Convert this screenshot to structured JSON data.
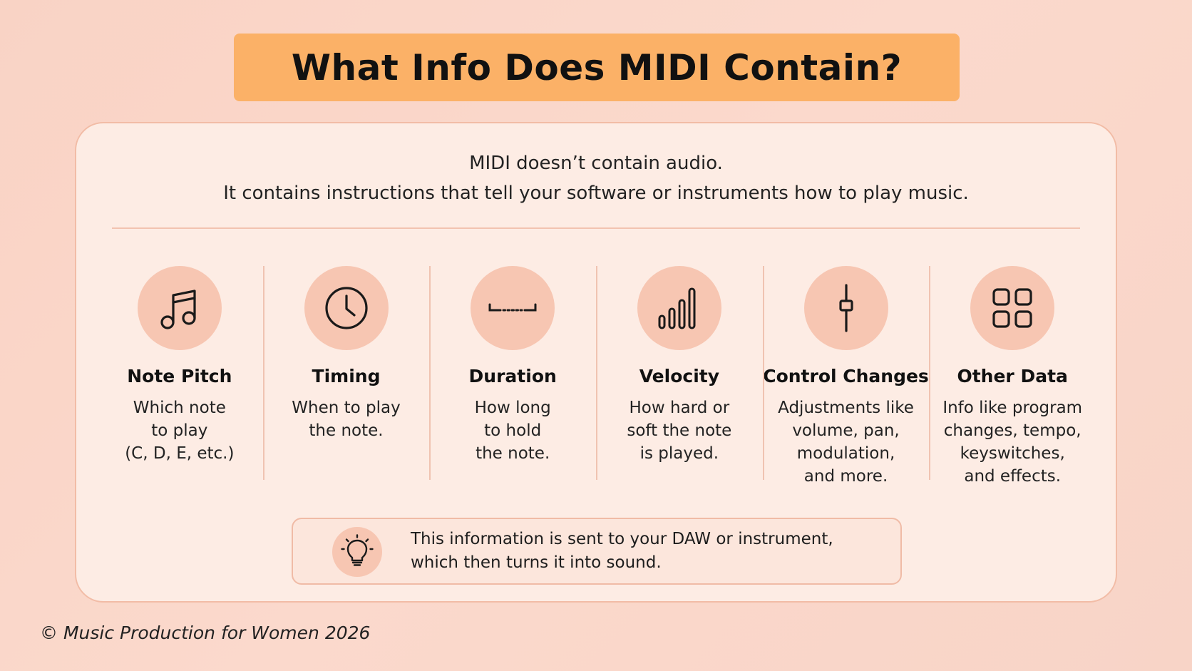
{
  "title": "What Info Does MIDI Contain?",
  "intro": {
    "line1": "MIDI doesn’t contain audio.",
    "line2": "It contains instructions that tell your software or instruments how to play music."
  },
  "items": [
    {
      "icon": "music-note-icon",
      "title": "Note Pitch",
      "description": "Which note\nto play\n(C, D, E, etc.)"
    },
    {
      "icon": "clock-icon",
      "title": "Timing",
      "description": "When to play\nthe note."
    },
    {
      "icon": "duration-bracket-icon",
      "title": "Duration",
      "description": "How long\nto hold\nthe note."
    },
    {
      "icon": "velocity-bars-icon",
      "title": "Velocity",
      "description": "How hard or\nsoft the note\nis played."
    },
    {
      "icon": "fader-icon",
      "title": "Control Changes",
      "description": "Adjustments like\nvolume, pan,\nmodulation,\nand more."
    },
    {
      "icon": "grid-icon",
      "title": "Other Data",
      "description": "Info like program\nchanges, tempo,\nkeyswitches,\nand effects."
    }
  ],
  "info_box": {
    "icon": "lightbulb-icon",
    "line1": "This information is sent to your DAW or instrument,",
    "line2": "which then turns it into sound."
  },
  "footer": "© Music Production for Women 2026",
  "colors": {
    "background": "#f9d3c5",
    "title_banner": "#fbb167",
    "card": "#fdece4",
    "icon_circle": "#f7c6b2"
  }
}
